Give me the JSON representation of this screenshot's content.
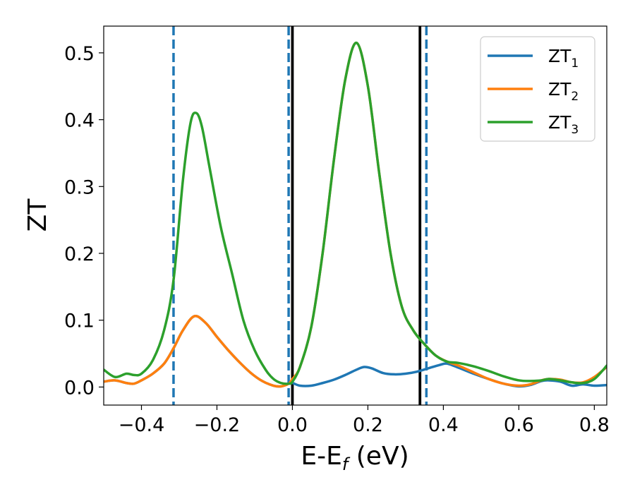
{
  "chart_data": {
    "type": "line",
    "xlabel_main": "E-E",
    "xlabel_sub": "f",
    "xlabel_unit": " (eV)",
    "ylabel": "ZT",
    "xlim": [
      -0.5,
      0.833
    ],
    "ylim": [
      -0.027,
      0.54
    ],
    "grid": false,
    "legend_position": "top-right",
    "x_ticks": [
      {
        "value": -0.4,
        "label": "−0.4"
      },
      {
        "value": -0.2,
        "label": "−0.2"
      },
      {
        "value": 0.0,
        "label": "0.0"
      },
      {
        "value": 0.2,
        "label": "0.2"
      },
      {
        "value": 0.4,
        "label": "0.4"
      },
      {
        "value": 0.6,
        "label": "0.6"
      },
      {
        "value": 0.8,
        "label": "0.8"
      }
    ],
    "y_ticks": [
      {
        "value": 0.0,
        "label": "0.0"
      },
      {
        "value": 0.1,
        "label": "0.1"
      },
      {
        "value": 0.2,
        "label": "0.2"
      },
      {
        "value": 0.3,
        "label": "0.3"
      },
      {
        "value": 0.4,
        "label": "0.4"
      },
      {
        "value": 0.5,
        "label": "0.5"
      }
    ],
    "vertical_lines": [
      {
        "x": -0.315,
        "style": "dashed",
        "color": "#1f77b4"
      },
      {
        "x": -0.01,
        "style": "dashed",
        "color": "#1f77b4"
      },
      {
        "x": 0.355,
        "style": "dashed",
        "color": "#1f77b4"
      },
      {
        "x": 0.0,
        "style": "solid",
        "color": "#000000"
      },
      {
        "x": 0.338,
        "style": "solid",
        "color": "#000000"
      }
    ],
    "series": [
      {
        "name": "ZT",
        "name_sub": "1",
        "color": "#1f77b4",
        "x": [
          -0.5,
          -0.47,
          -0.44,
          -0.42,
          -0.4,
          -0.37,
          -0.34,
          -0.315,
          -0.29,
          -0.26,
          -0.23,
          -0.2,
          -0.17,
          -0.14,
          -0.11,
          -0.08,
          -0.05,
          -0.03,
          -0.01,
          0.0,
          0.02,
          0.05,
          0.08,
          0.11,
          0.14,
          0.17,
          0.19,
          0.21,
          0.24,
          0.27,
          0.3,
          0.33,
          0.36,
          0.39,
          0.41,
          0.44,
          0.48,
          0.52,
          0.56,
          0.6,
          0.63,
          0.66,
          0.68,
          0.71,
          0.74,
          0.77,
          0.8,
          0.833
        ],
        "y": [
          0.008,
          0.01,
          0.006,
          0.005,
          0.01,
          0.02,
          0.035,
          0.058,
          0.085,
          0.106,
          0.096,
          0.075,
          0.055,
          0.037,
          0.021,
          0.009,
          0.002,
          0.001,
          0.005,
          0.006,
          0.002,
          0.002,
          0.006,
          0.011,
          0.018,
          0.026,
          0.03,
          0.028,
          0.021,
          0.019,
          0.02,
          0.023,
          0.028,
          0.033,
          0.035,
          0.029,
          0.02,
          0.012,
          0.005,
          0.001,
          0.003,
          0.009,
          0.01,
          0.008,
          0.002,
          0.004,
          0.002,
          0.003
        ]
      },
      {
        "name": "ZT",
        "name_sub": "2",
        "color": "#ff7f0e",
        "x": [
          -0.5,
          -0.47,
          -0.44,
          -0.42,
          -0.4,
          -0.37,
          -0.34,
          -0.315,
          -0.29,
          -0.26,
          -0.23,
          -0.2,
          -0.17,
          -0.14,
          -0.11,
          -0.08,
          -0.05,
          -0.03,
          -0.01,
          0.0,
          0.02,
          0.05,
          0.08,
          0.11,
          0.14,
          0.17,
          0.2,
          0.23,
          0.26,
          0.29,
          0.32,
          0.35,
          0.38,
          0.41,
          0.44,
          0.48,
          0.52,
          0.56,
          0.6,
          0.63,
          0.66,
          0.68,
          0.71,
          0.74,
          0.77,
          0.8,
          0.833
        ],
        "y": [
          0.008,
          0.01,
          0.006,
          0.005,
          0.01,
          0.02,
          0.035,
          0.058,
          0.085,
          0.106,
          0.096,
          0.075,
          0.055,
          0.037,
          0.021,
          0.009,
          0.002,
          0.001,
          0.005,
          0.012,
          0.03,
          0.09,
          0.2,
          0.34,
          0.46,
          0.515,
          0.45,
          0.32,
          0.2,
          0.12,
          0.085,
          0.064,
          0.047,
          0.038,
          0.032,
          0.022,
          0.012,
          0.005,
          0.002,
          0.004,
          0.01,
          0.012,
          0.011,
          0.007,
          0.007,
          0.015,
          0.03
        ]
      },
      {
        "name": "ZT",
        "name_sub": "3",
        "color": "#2ca02c",
        "x": [
          -0.5,
          -0.47,
          -0.44,
          -0.42,
          -0.4,
          -0.37,
          -0.34,
          -0.315,
          -0.29,
          -0.27,
          -0.255,
          -0.24,
          -0.22,
          -0.19,
          -0.16,
          -0.13,
          -0.1,
          -0.07,
          -0.05,
          -0.03,
          -0.01,
          0.0,
          0.02,
          0.05,
          0.08,
          0.11,
          0.14,
          0.17,
          0.2,
          0.23,
          0.26,
          0.29,
          0.32,
          0.35,
          0.38,
          0.41,
          0.44,
          0.48,
          0.52,
          0.56,
          0.6,
          0.63,
          0.66,
          0.68,
          0.71,
          0.74,
          0.77,
          0.8,
          0.833
        ],
        "y": [
          0.026,
          0.015,
          0.02,
          0.018,
          0.02,
          0.04,
          0.085,
          0.16,
          0.31,
          0.395,
          0.41,
          0.39,
          0.33,
          0.24,
          0.17,
          0.1,
          0.055,
          0.025,
          0.012,
          0.006,
          0.005,
          0.008,
          0.03,
          0.09,
          0.2,
          0.34,
          0.46,
          0.515,
          0.45,
          0.32,
          0.2,
          0.12,
          0.085,
          0.064,
          0.047,
          0.038,
          0.036,
          0.031,
          0.024,
          0.016,
          0.01,
          0.009,
          0.01,
          0.012,
          0.01,
          0.007,
          0.006,
          0.012,
          0.032
        ]
      }
    ]
  }
}
